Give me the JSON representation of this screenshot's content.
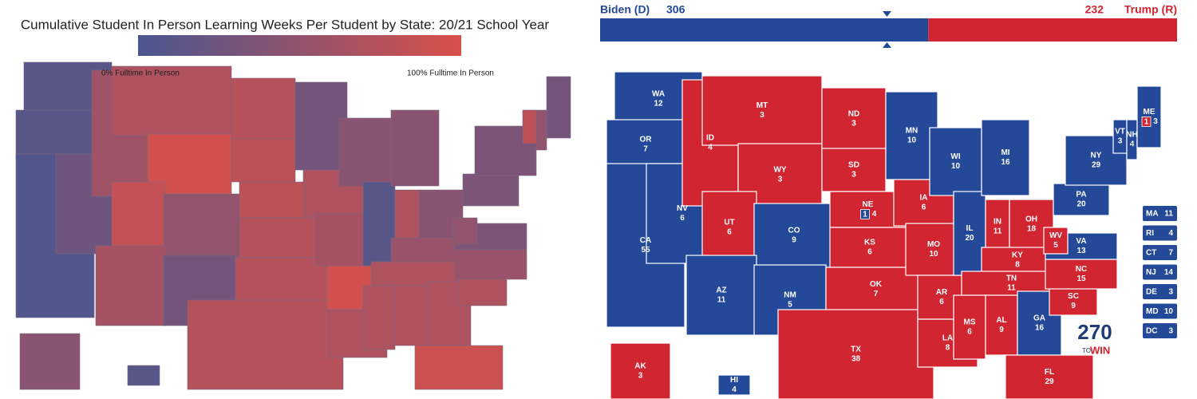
{
  "left_map": {
    "title": "Cumulative Student In Person Learning Weeks Per Student by State: 20/21 School Year",
    "legend": {
      "min_label": "0% Fulltime In Person",
      "max_label": "100% Fulltime In Person",
      "min_color": "#4a5690",
      "max_color": "#d9504a"
    }
  },
  "right_map": {
    "header": {
      "biden": {
        "name": "Biden (D)",
        "votes": 306,
        "color": "#244999"
      },
      "trump": {
        "name": "Trump (R)",
        "votes": 232,
        "color": "#d22532"
      }
    },
    "states": [
      {
        "abbr": "WA",
        "votes": 12,
        "color": "#244999"
      },
      {
        "abbr": "OR",
        "votes": 7,
        "color": "#244999"
      },
      {
        "abbr": "CA",
        "votes": 55,
        "color": "#244999"
      },
      {
        "abbr": "NV",
        "votes": 6,
        "color": "#244999"
      },
      {
        "abbr": "ID",
        "votes": 4,
        "color": "#d22532"
      },
      {
        "abbr": "MT",
        "votes": 3,
        "color": "#d22532"
      },
      {
        "abbr": "WY",
        "votes": 3,
        "color": "#d22532"
      },
      {
        "abbr": "UT",
        "votes": 6,
        "color": "#d22532"
      },
      {
        "abbr": "CO",
        "votes": 9,
        "color": "#244999"
      },
      {
        "abbr": "AZ",
        "votes": 11,
        "color": "#244999"
      },
      {
        "abbr": "NM",
        "votes": 5,
        "color": "#244999"
      },
      {
        "abbr": "ND",
        "votes": 3,
        "color": "#d22532"
      },
      {
        "abbr": "SD",
        "votes": 3,
        "color": "#d22532"
      },
      {
        "abbr": "NE",
        "votes": 4,
        "color": "#d22532",
        "split": {
          "votes": 1,
          "color": "#244999"
        }
      },
      {
        "abbr": "KS",
        "votes": 6,
        "color": "#d22532"
      },
      {
        "abbr": "OK",
        "votes": 7,
        "color": "#d22532"
      },
      {
        "abbr": "TX",
        "votes": 38,
        "color": "#d22532"
      },
      {
        "abbr": "MN",
        "votes": 10,
        "color": "#244999"
      },
      {
        "abbr": "IA",
        "votes": 6,
        "color": "#d22532"
      },
      {
        "abbr": "MO",
        "votes": 10,
        "color": "#d22532"
      },
      {
        "abbr": "AR",
        "votes": 6,
        "color": "#d22532"
      },
      {
        "abbr": "LA",
        "votes": 8,
        "color": "#d22532"
      },
      {
        "abbr": "WI",
        "votes": 10,
        "color": "#244999"
      },
      {
        "abbr": "IL",
        "votes": 20,
        "color": "#244999"
      },
      {
        "abbr": "MI",
        "votes": 16,
        "color": "#244999"
      },
      {
        "abbr": "IN",
        "votes": 11,
        "color": "#d22532"
      },
      {
        "abbr": "OH",
        "votes": 18,
        "color": "#d22532"
      },
      {
        "abbr": "KY",
        "votes": 8,
        "color": "#d22532"
      },
      {
        "abbr": "TN",
        "votes": 11,
        "color": "#d22532"
      },
      {
        "abbr": "MS",
        "votes": 6,
        "color": "#d22532"
      },
      {
        "abbr": "AL",
        "votes": 9,
        "color": "#d22532"
      },
      {
        "abbr": "GA",
        "votes": 16,
        "color": "#244999"
      },
      {
        "abbr": "FL",
        "votes": 29,
        "color": "#d22532"
      },
      {
        "abbr": "SC",
        "votes": 9,
        "color": "#d22532"
      },
      {
        "abbr": "NC",
        "votes": 15,
        "color": "#d22532"
      },
      {
        "abbr": "VA",
        "votes": 13,
        "color": "#244999"
      },
      {
        "abbr": "WV",
        "votes": 5,
        "color": "#d22532"
      },
      {
        "abbr": "PA",
        "votes": 20,
        "color": "#244999"
      },
      {
        "abbr": "NY",
        "votes": 29,
        "color": "#244999"
      },
      {
        "abbr": "VT",
        "votes": 3,
        "color": "#244999"
      },
      {
        "abbr": "NH",
        "votes": 4,
        "color": "#244999"
      },
      {
        "abbr": "ME",
        "votes": 3,
        "color": "#244999",
        "split": {
          "votes": 1,
          "color": "#d22532"
        }
      },
      {
        "abbr": "AK",
        "votes": 3,
        "color": "#d22532"
      },
      {
        "abbr": "HI",
        "votes": 4,
        "color": "#244999"
      }
    ],
    "small_states": [
      {
        "abbr": "MA",
        "votes": 11,
        "color": "#244999"
      },
      {
        "abbr": "RI",
        "votes": 4,
        "color": "#244999"
      },
      {
        "abbr": "CT",
        "votes": 7,
        "color": "#244999"
      },
      {
        "abbr": "NJ",
        "votes": 14,
        "color": "#244999"
      },
      {
        "abbr": "DE",
        "votes": 3,
        "color": "#244999"
      },
      {
        "abbr": "MD",
        "votes": 10,
        "color": "#244999"
      },
      {
        "abbr": "DC",
        "votes": 3,
        "color": "#244999"
      }
    ],
    "logo": {
      "number": "270",
      "to": "TO",
      "win": "WIN"
    }
  }
}
